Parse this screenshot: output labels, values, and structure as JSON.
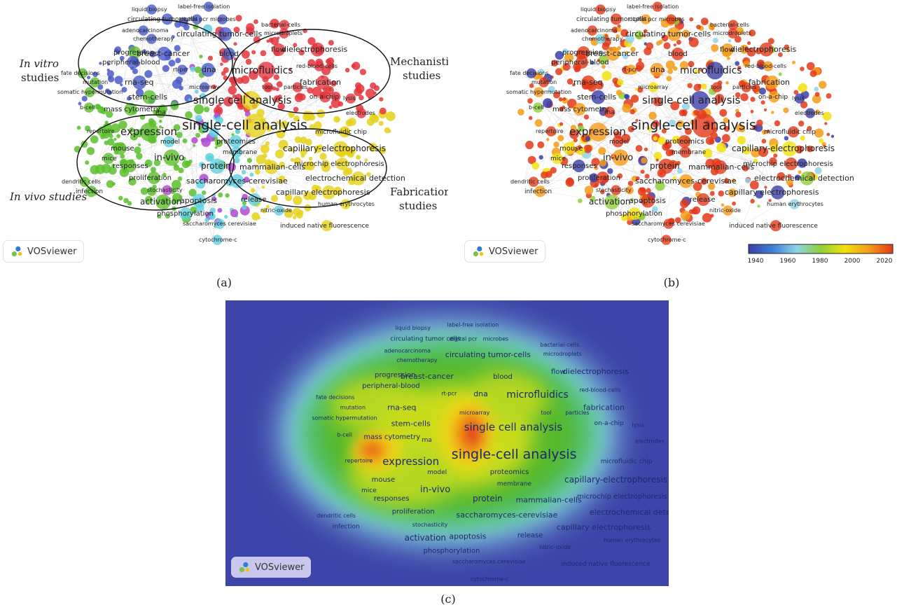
{
  "panels": {
    "a": {
      "label": "(a)",
      "annotations": [
        "In vitro",
        "studies",
        "Mechanistic",
        "studies",
        "In vivo studies",
        "Fabrication",
        "studies"
      ],
      "brand": "VOSviewer"
    },
    "b": {
      "label": "(b)",
      "brand": "VOSviewer",
      "colorbar": {
        "ticks": [
          "1940",
          "1960",
          "1980",
          "2000",
          "2020"
        ],
        "colors": [
          "#3b3fa8",
          "#3f7fd6",
          "#8fd3e8",
          "#8fcf3a",
          "#f2e20c",
          "#f59b16",
          "#e23a1a"
        ]
      }
    },
    "c": {
      "label": "(c)",
      "brand": "VOSviewer",
      "background": "#3d45a8"
    }
  },
  "terms": [
    {
      "t": "liquid biopsy",
      "c": "blue"
    },
    {
      "t": "label-free isolation",
      "c": "blue"
    },
    {
      "t": "circulating tumor cells",
      "c": "blue"
    },
    {
      "t": "digital pcr",
      "c": "blue"
    },
    {
      "t": "microbes",
      "c": "blue"
    },
    {
      "t": "adenocarcinoma",
      "c": "blue"
    },
    {
      "t": "chemotherapy",
      "c": "blue"
    },
    {
      "t": "circulating tumor-cells",
      "c": "blue"
    },
    {
      "t": "bacterial-cells",
      "c": "red"
    },
    {
      "t": "microdroplets",
      "c": "red"
    },
    {
      "t": "progression",
      "c": "green"
    },
    {
      "t": "breast-cancer",
      "c": "blue"
    },
    {
      "t": "blood",
      "c": "blue"
    },
    {
      "t": "flow",
      "c": "red"
    },
    {
      "t": "dielectrophoresis",
      "c": "red"
    },
    {
      "t": "peripheral-blood",
      "c": "blue"
    },
    {
      "t": "red-blood-cells",
      "c": "red"
    },
    {
      "t": "fate decisions",
      "c": "green"
    },
    {
      "t": "rt-pcr",
      "c": "blue"
    },
    {
      "t": "dna",
      "c": "blue"
    },
    {
      "t": "microfluidics",
      "c": "red"
    },
    {
      "t": "mutation",
      "c": "green"
    },
    {
      "t": "rna-seq",
      "c": "blue"
    },
    {
      "t": "microarray",
      "c": "blue"
    },
    {
      "t": "tool",
      "c": "red"
    },
    {
      "t": "particles",
      "c": "red"
    },
    {
      "t": "fabrication",
      "c": "red"
    },
    {
      "t": "somatic hypermutation",
      "c": "green"
    },
    {
      "t": "stem-cells",
      "c": "green"
    },
    {
      "t": "single cell analysis",
      "c": "yellow"
    },
    {
      "t": "on-a-chip",
      "c": "red"
    },
    {
      "t": "lysis",
      "c": "red"
    },
    {
      "t": "b-cell",
      "c": "green"
    },
    {
      "t": "mass cytometry",
      "c": "green"
    },
    {
      "t": "rna",
      "c": "green"
    },
    {
      "t": "electrodes",
      "c": "red"
    },
    {
      "t": "repertoire",
      "c": "green"
    },
    {
      "t": "expression",
      "c": "green"
    },
    {
      "t": "single-cell analysis",
      "c": "yellow"
    },
    {
      "t": "microfluidic chip",
      "c": "yellow"
    },
    {
      "t": "model",
      "c": "cyan"
    },
    {
      "t": "proteomics",
      "c": "cyan"
    },
    {
      "t": "mouse",
      "c": "green"
    },
    {
      "t": "membrane",
      "c": "cyan"
    },
    {
      "t": "capillary-electrophoresis",
      "c": "yellow"
    },
    {
      "t": "mice",
      "c": "green"
    },
    {
      "t": "in-vivo",
      "c": "green"
    },
    {
      "t": "responses",
      "c": "green"
    },
    {
      "t": "protein",
      "c": "cyan"
    },
    {
      "t": "mammalian-cells",
      "c": "yellow"
    },
    {
      "t": "microchip electrophoresis",
      "c": "yellow"
    },
    {
      "t": "dendritic cells",
      "c": "green"
    },
    {
      "t": "proliferation",
      "c": "green"
    },
    {
      "t": "saccharomyces-cerevisiae",
      "c": "cyan"
    },
    {
      "t": "electrochemical detection",
      "c": "yellow"
    },
    {
      "t": "infection",
      "c": "green"
    },
    {
      "t": "stochasticity",
      "c": "purple"
    },
    {
      "t": "capillary electrophoresis",
      "c": "yellow"
    },
    {
      "t": "activation",
      "c": "green"
    },
    {
      "t": "apoptosis",
      "c": "cyan"
    },
    {
      "t": "release",
      "c": "cyan"
    },
    {
      "t": "human erythrocytes",
      "c": "yellow"
    },
    {
      "t": "nitric-oxide",
      "c": "cyan"
    },
    {
      "t": "phosphorylation",
      "c": "cyan"
    },
    {
      "t": "saccharomyces cerevisiae",
      "c": "cyan"
    },
    {
      "t": "induced native fluorescence",
      "c": "yellow"
    },
    {
      "t": "cytochrome-c",
      "c": "cyan"
    }
  ]
}
